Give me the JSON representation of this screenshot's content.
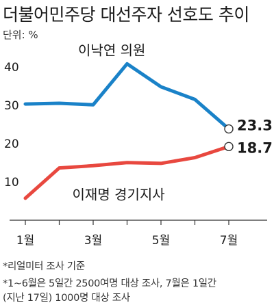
{
  "title": "더불어민주당 대선주자 선호도 추이",
  "unit_label": "단위: %",
  "notes": [
    "*리얼미터 조사 기준",
    "*1~6월은 5일간 2500여명 대상 조사, 7월은 1일간",
    "(지난 17일) 1000명 대상 조사"
  ],
  "colors": {
    "series_1": "#1a82c8",
    "series_2": "#e8483f",
    "axis": "#333333",
    "text": "#1a1a1a"
  },
  "chart_data": {
    "type": "line",
    "title": "더불어민주당 대선주자 선호도 추이",
    "ylabel": "단위: %",
    "xlabel": "",
    "x": [
      1,
      2,
      3,
      4,
      5,
      6,
      7
    ],
    "xtick_values": [
      1,
      3,
      5,
      7
    ],
    "xtick_labels": [
      "1월",
      "3월",
      "5월",
      "7월"
    ],
    "ylim": [
      0,
      45
    ],
    "yticks": [
      10,
      20,
      30,
      40
    ],
    "grid": false,
    "series": [
      {
        "name": "이낙연 의원",
        "values": [
          29.8,
          30.0,
          29.6,
          40.3,
          34.3,
          31.0,
          23.3
        ],
        "end_label": "23.3"
      },
      {
        "name": "이재명 경기지사",
        "values": [
          5.2,
          13.1,
          13.7,
          14.5,
          14.3,
          15.8,
          18.7
        ],
        "end_label": "18.7"
      }
    ]
  }
}
